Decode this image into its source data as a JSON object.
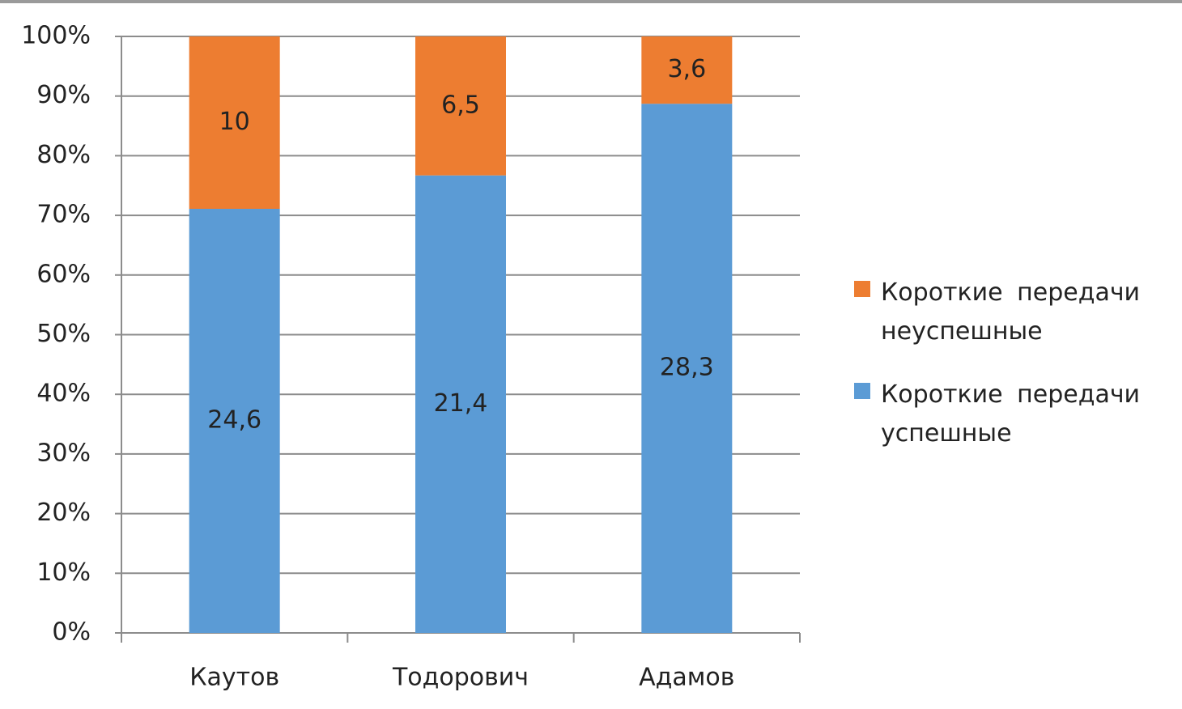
{
  "chart_data": {
    "type": "bar",
    "stacked": "percent",
    "categories": [
      "Каутов",
      "Тодорович",
      "Адамов"
    ],
    "series": [
      {
        "name": "Короткие передачи успешные",
        "color": "#5b9bd5",
        "values": [
          24.6,
          21.4,
          28.3
        ],
        "value_labels": [
          "24,6",
          "21,4",
          "28,3"
        ]
      },
      {
        "name": "Короткие передачи неуспешные",
        "color": "#ed7d31",
        "values": [
          10,
          6.5,
          3.6
        ],
        "value_labels": [
          "10",
          "6,5",
          "3,6"
        ]
      }
    ],
    "ylim": [
      0,
      100
    ],
    "yticks": [
      {
        "value": 0,
        "label": "0%"
      },
      {
        "value": 10,
        "label": "10%"
      },
      {
        "value": 20,
        "label": "20%"
      },
      {
        "value": 30,
        "label": "30%"
      },
      {
        "value": 40,
        "label": "40%"
      },
      {
        "value": 50,
        "label": "50%"
      },
      {
        "value": 60,
        "label": "60%"
      },
      {
        "value": 70,
        "label": "70%"
      },
      {
        "value": 80,
        "label": "80%"
      },
      {
        "value": 90,
        "label": "90%"
      },
      {
        "value": 100,
        "label": "100%"
      }
    ],
    "grid": true,
    "legend": "right"
  }
}
